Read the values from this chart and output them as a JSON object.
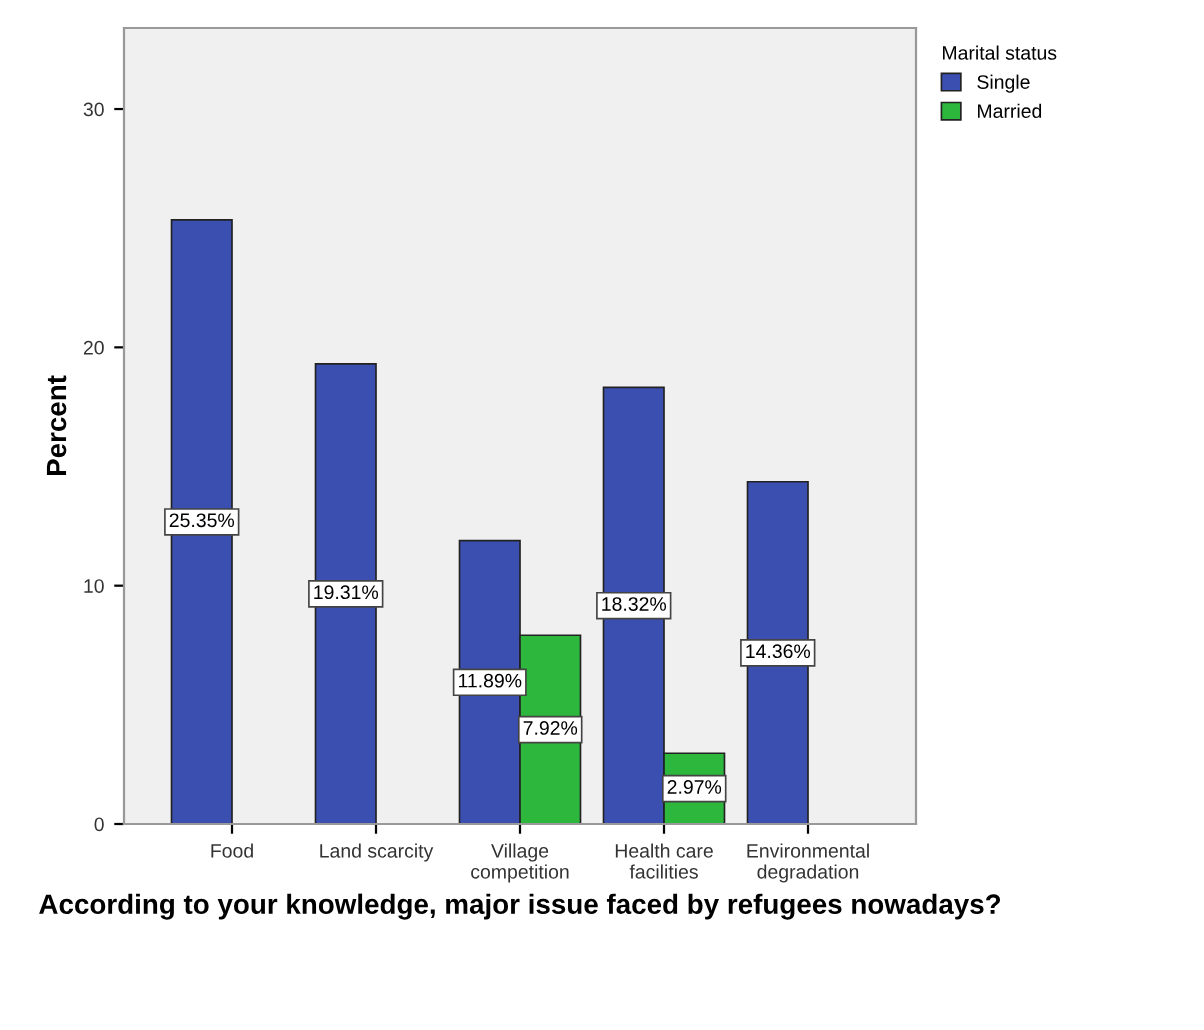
{
  "chart_data": {
    "type": "bar",
    "xlabel": "According to your knowledge, major issue faced by refugees nowadays?",
    "ylabel": "Percent",
    "legend_title": "Marital status",
    "categories": [
      "Food",
      "Land scarcity",
      "Village\ncompetition",
      "Health care\nfacilities",
      "Environmental\ndegradation"
    ],
    "series": [
      {
        "name": "Single",
        "color": "#3a4fb0",
        "values": [
          25.35,
          19.31,
          11.89,
          18.32,
          14.36
        ],
        "value_labels": [
          "25.35%",
          "19.31%",
          "11.89%",
          "18.32%",
          "14.36%"
        ]
      },
      {
        "name": "Married",
        "color": "#2db83d",
        "values": [
          null,
          null,
          7.92,
          2.97,
          null
        ],
        "value_labels": [
          null,
          null,
          "7.92%",
          "2.97%",
          null
        ]
      }
    ],
    "ylim": [
      0,
      33.4
    ],
    "yticks": [
      0,
      10,
      20,
      30
    ],
    "grid": false,
    "legend": "top right"
  }
}
